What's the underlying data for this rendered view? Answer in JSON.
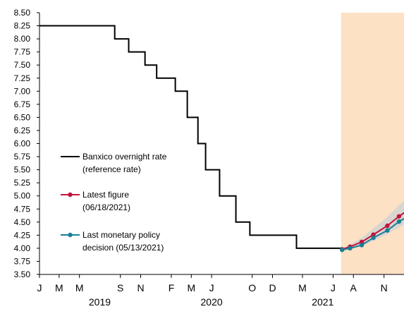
{
  "chart_data": {
    "type": "line",
    "title": "",
    "xlabel": "",
    "ylabel": "",
    "ylim": [
      3.5,
      8.5
    ],
    "y_ticks": [
      "8.50",
      "8.25",
      "8.00",
      "7.75",
      "7.50",
      "7.25",
      "7.00",
      "6.75",
      "6.50",
      "6.25",
      "6.00",
      "5.75",
      "5.50",
      "5.25",
      "5.00",
      "4.75",
      "4.50",
      "4.25",
      "4.00",
      "3.75",
      "3.50"
    ],
    "x_month_ticks": [
      {
        "label": "J",
        "date": "2019-01"
      },
      {
        "label": "M",
        "date": "2019-03"
      },
      {
        "label": "M",
        "date": "2019-05"
      },
      {
        "label": "S",
        "date": "2019-09"
      },
      {
        "label": "N",
        "date": "2019-11"
      },
      {
        "label": "F",
        "date": "2020-02"
      },
      {
        "label": "M",
        "date": "2020-04"
      },
      {
        "label": "J",
        "date": "2020-06"
      },
      {
        "label": "O",
        "date": "2020-10"
      },
      {
        "label": "D",
        "date": "2020-12"
      },
      {
        "label": "M",
        "date": "2021-03"
      },
      {
        "label": "J",
        "date": "2021-06"
      },
      {
        "label": "A",
        "date": "2021-08"
      },
      {
        "label": "N",
        "date": "2021-11"
      }
    ],
    "x_year_labels": [
      {
        "label": "2019",
        "date": "2019-07"
      },
      {
        "label": "2020",
        "date": "2020-06"
      },
      {
        "label": "2021",
        "date": "2021-05"
      }
    ],
    "forecast_region": {
      "start": "2021-06-25",
      "color": "#fde1c4"
    },
    "legend": {
      "position": "center-left",
      "entries": [
        {
          "line1": "Banxico overnight rate",
          "line2": "(reference rate)",
          "color": "#000000",
          "marker": false
        },
        {
          "line1": "Latest figure",
          "line2": "(06/18/2021)",
          "color": "#c0143c",
          "marker": true
        },
        {
          "line1": "Last monetary policy",
          "line2": "decision (05/13/2021)",
          "color": "#1a7f96",
          "marker": true
        }
      ]
    },
    "series": [
      {
        "key": "banxico",
        "color": "#000000",
        "step": true,
        "points": [
          [
            "2019-01-01",
            8.25
          ],
          [
            "2019-08-15",
            8.0
          ],
          [
            "2019-09-26",
            7.75
          ],
          [
            "2019-11-14",
            7.5
          ],
          [
            "2019-12-19",
            7.25
          ],
          [
            "2020-02-13",
            7.0
          ],
          [
            "2020-03-20",
            6.5
          ],
          [
            "2020-04-21",
            6.0
          ],
          [
            "2020-05-14",
            5.5
          ],
          [
            "2020-06-25",
            5.0
          ],
          [
            "2020-08-13",
            4.5
          ],
          [
            "2020-09-24",
            4.25
          ],
          [
            "2021-02-11",
            4.0
          ],
          [
            "2021-06-25",
            4.0
          ]
        ]
      },
      {
        "key": "latest",
        "color": "#c0143c",
        "band_color": "#d2d2d2",
        "points": [
          [
            "2021-06-28",
            3.98
          ],
          [
            "2021-07-22",
            4.03
          ],
          [
            "2021-08-26",
            4.12
          ],
          [
            "2021-09-30",
            4.26
          ],
          [
            "2021-11-11",
            4.43
          ],
          [
            "2021-12-16",
            4.61
          ],
          [
            "2022-01-10",
            4.72
          ]
        ],
        "band": [
          [
            3.97,
            3.99
          ],
          [
            4.0,
            4.07
          ],
          [
            4.05,
            4.2
          ],
          [
            4.14,
            4.38
          ],
          [
            4.27,
            4.6
          ],
          [
            4.4,
            4.82
          ],
          [
            4.48,
            4.95
          ]
        ]
      },
      {
        "key": "policy",
        "color": "#1a7f96",
        "points": [
          [
            "2021-06-28",
            3.97
          ],
          [
            "2021-07-22",
            4.0
          ],
          [
            "2021-08-26",
            4.06
          ],
          [
            "2021-09-30",
            4.2
          ],
          [
            "2021-11-11",
            4.34
          ],
          [
            "2021-12-16",
            4.51
          ],
          [
            "2022-01-10",
            4.6
          ]
        ]
      }
    ]
  }
}
